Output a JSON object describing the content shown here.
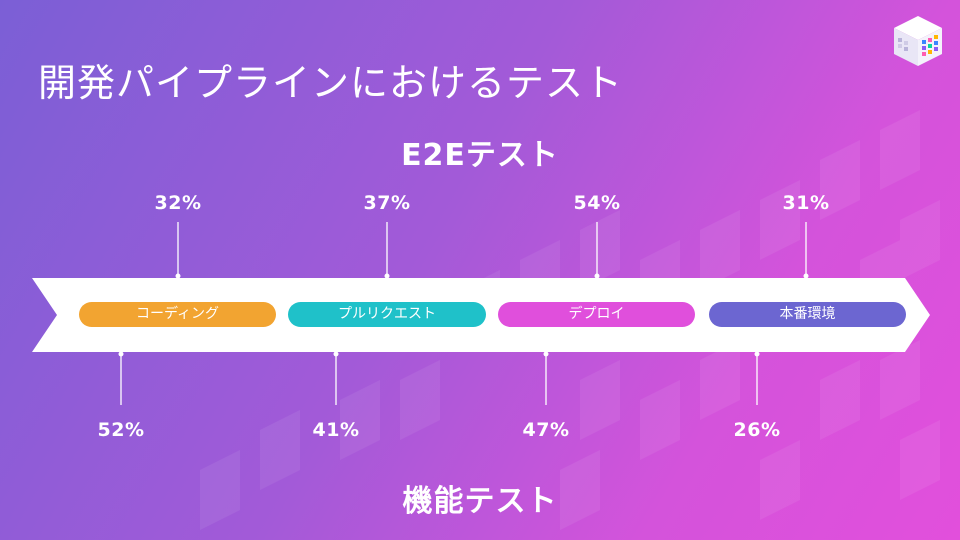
{
  "title": "開発パイプラインにおけるテスト",
  "e2e_title": "E2Eテスト",
  "functional_title": "機能テスト",
  "stages": [
    {
      "label": "コーディング",
      "color": "#f2a431",
      "e2e": "32%",
      "functional": "52%"
    },
    {
      "label": "プルリクエスト",
      "color": "#1fc1c9",
      "e2e": "37%",
      "functional": "41%"
    },
    {
      "label": "デプロイ",
      "color": "#e04fdc",
      "e2e": "54%",
      "functional": "47%"
    },
    {
      "label": "本番環境",
      "color": "#6c66d1",
      "e2e": "31%",
      "functional": "26%"
    }
  ],
  "colors": {
    "background_start": "#7b5fd6",
    "background_end": "#e24fdc",
    "arrow": "#ffffff"
  }
}
